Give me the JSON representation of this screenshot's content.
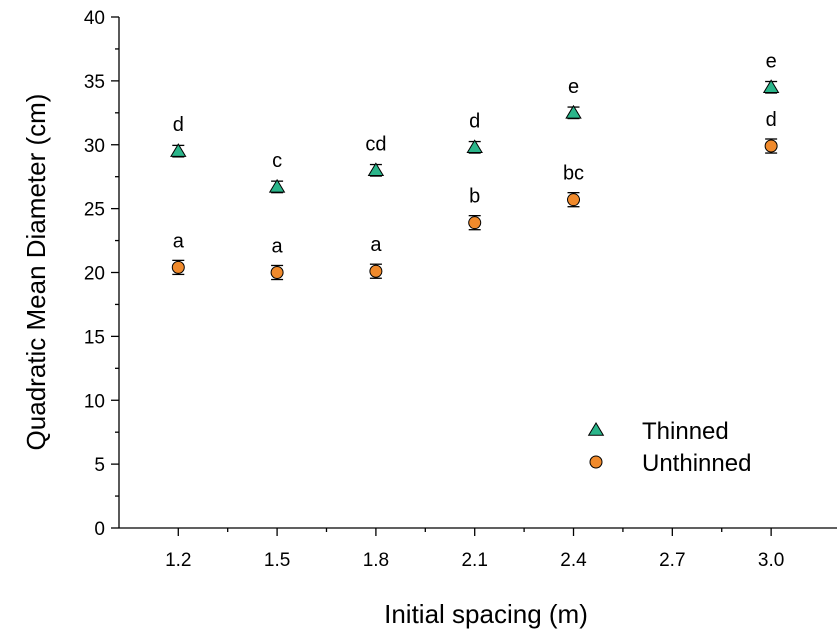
{
  "chart_data": {
    "type": "scatter",
    "xlabel": "Initial spacing (m)",
    "ylabel": "Quadratic Mean Diameter (cm)",
    "x_ticks": [
      "1.2",
      "1.5",
      "1.8",
      "2.1",
      "2.4",
      "2.7",
      "3.0"
    ],
    "y_ticks": [
      "0",
      "5",
      "10",
      "15",
      "20",
      "25",
      "30",
      "35",
      "40"
    ],
    "xlim": [
      1.02,
      3.2
    ],
    "ylim": [
      0,
      40
    ],
    "grid": false,
    "legend_position": "bottom-right",
    "series": [
      {
        "name": "Thinned",
        "marker": "triangle",
        "color": "#2bb58a",
        "x": [
          1.2,
          1.5,
          1.8,
          2.1,
          2.4,
          3.0
        ],
        "y": [
          29.5,
          26.7,
          28.0,
          29.8,
          32.5,
          34.5
        ],
        "err": [
          0.45,
          0.45,
          0.45,
          0.45,
          0.45,
          0.45
        ],
        "letters": [
          "d",
          "c",
          "cd",
          "d",
          "e",
          "e"
        ]
      },
      {
        "name": "Unthinned",
        "marker": "circle",
        "color": "#f08a2c",
        "x": [
          1.2,
          1.5,
          1.8,
          2.1,
          2.4,
          3.0
        ],
        "y": [
          20.4,
          20.0,
          20.1,
          23.9,
          25.7,
          29.9
        ],
        "err": [
          0.55,
          0.55,
          0.55,
          0.55,
          0.55,
          0.55
        ],
        "letters": [
          "a",
          "a",
          "a",
          "b",
          "bc",
          "d"
        ]
      }
    ]
  }
}
